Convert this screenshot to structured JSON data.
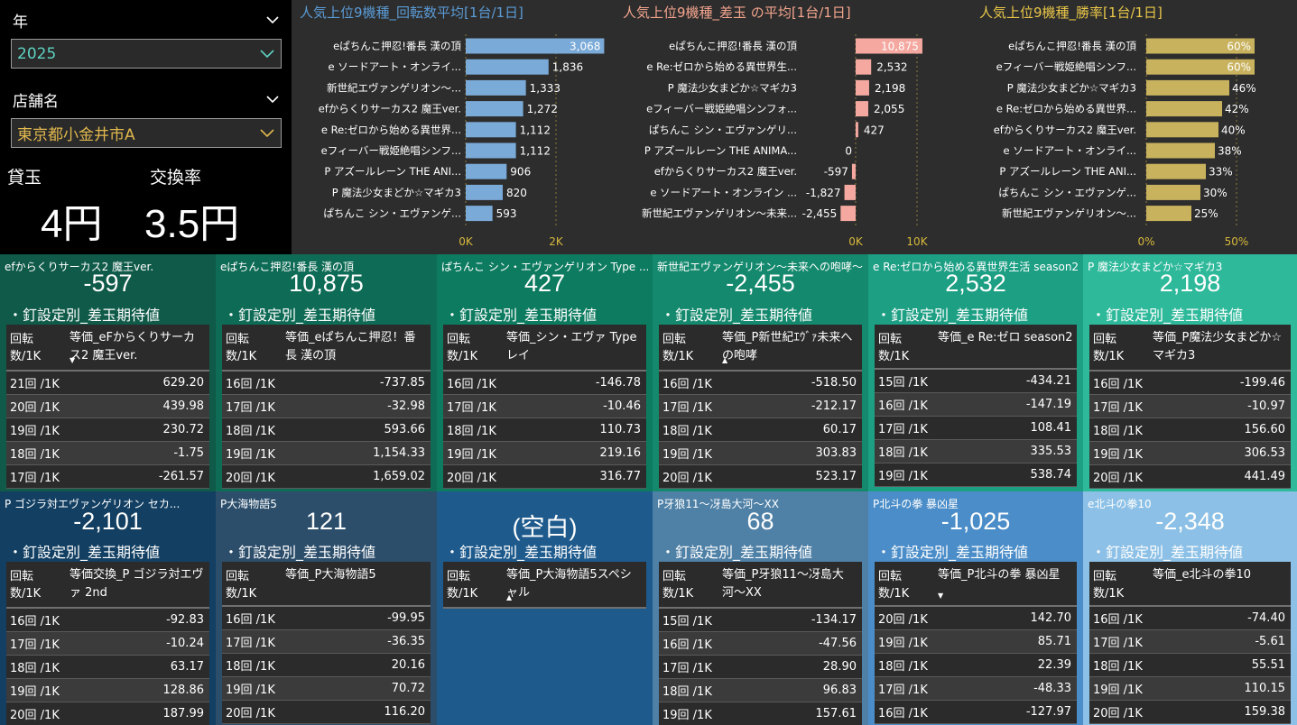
{
  "filters": {
    "year_label": "年",
    "year_value": "2025",
    "store_label": "店舗名",
    "store_value": "東京都小金井市A",
    "ball_label": "貸玉",
    "ball_value": "4円",
    "rate_label": "交換率",
    "rate_value": "3.5円"
  },
  "charts": [
    {
      "title": "人気上位9機種_回転数平均[1台/1日]",
      "title_color": "#5b9bd5",
      "bar_color": "#7aaad8",
      "categories": [
        "eぱちんこ押忍!番長 漢の頂",
        "e ソードアート・オンライ...",
        "新世紀エヴァンゲリオン〜...",
        "efからくりサーカス2 魔王ver.",
        "e Re:ゼロから始める異世界...",
        "eフィーバー戦姫絶唱シンフ...",
        "P アズールレーン THE ANI...",
        "P 魔法少女まどか☆マギカ3",
        "ぱちんこ シン・エヴァンゲ..."
      ],
      "values": [
        3068,
        1836,
        1333,
        1272,
        1112,
        1112,
        906,
        820,
        593
      ],
      "labels": [
        "3,068",
        "1,836",
        "1,333",
        "1,272",
        "1,112",
        "1,112",
        "906",
        "820",
        "593"
      ],
      "ticks": [
        "0K",
        "2K"
      ]
    },
    {
      "title": "人気上位9機種_差玉 の平均[1台/1日]",
      "title_color": "#f4a58e",
      "bar_color": "#f4a8a0",
      "categories": [
        "eぱちんこ押忍!番長 漢の頂",
        "e Re:ゼロから始める異世界生...",
        "P 魔法少女まどか☆マギカ3",
        "eフィーバー戦姫絶唱シンフォ...",
        "ぱちんこ シン・エヴァンゲリ...",
        "P アズールレーン THE ANIMA...",
        "efからくりサーカス2 魔王ver.",
        "e ソードアート・オンライン ...",
        "新世紀エヴァンゲリオン〜未来..."
      ],
      "values": [
        10875,
        2532,
        2198,
        2055,
        427,
        0,
        -597,
        -1827,
        -2455
      ],
      "labels": [
        "10,875",
        "2,532",
        "2,198",
        "2,055",
        "427",
        "0",
        "-597",
        "-1,827",
        "-2,455"
      ],
      "ticks": [
        "0K",
        "10K"
      ]
    },
    {
      "title": "人気上位9機種_勝率[1台/1日]",
      "title_color": "#e8c64a",
      "bar_color": "#c8b25e",
      "categories": [
        "eぱちんこ押忍!番長 漢の頂",
        "eフィーバー戦姫絶唱シンフ...",
        "P 魔法少女まどか☆マギカ3",
        "e Re:ゼロから始める異世界...",
        "efからくりサーカス2 魔王ver.",
        "e ソードアート・オンライ...",
        "P アズールレーン THE ANI...",
        "ぱちんこ シン・エヴァンゲ...",
        "新世紀エヴァンゲリオン〜..."
      ],
      "values": [
        60,
        60,
        46,
        42,
        40,
        38,
        33,
        30,
        25
      ],
      "labels": [
        "60%",
        "60%",
        "46%",
        "42%",
        "40%",
        "38%",
        "33%",
        "30%",
        "25%"
      ],
      "ticks": [
        "0%",
        "50%"
      ]
    }
  ],
  "cards": [
    {
      "name": "efからくりサーカス2 魔王ver.",
      "value": "-597",
      "subtitle": "・釘設定別_差玉期待値",
      "col1": "回転数/1K",
      "col2": "等価_eFからくりサーカス2 魔王ver.",
      "sort": "▼",
      "bg": "#0f5a49",
      "rows": [
        [
          "21回 /1K",
          "629.20"
        ],
        [
          "20回 /1K",
          "439.98"
        ],
        [
          "19回 /1K",
          "230.72"
        ],
        [
          "18回 /1K",
          "-1.75"
        ],
        [
          "17回 /1K",
          "-261.57"
        ]
      ]
    },
    {
      "name": "eぱちんこ押忍!番長 漢の頂",
      "value": "10,875",
      "subtitle": "・釘設定別_差玉期待値",
      "col1": "回転数/1K",
      "col2": "等価_eぱちんこ押忍！番長 漢の頂",
      "sort": "",
      "bg": "#0e6b55",
      "rows": [
        [
          "16回 /1K",
          "-737.85"
        ],
        [
          "17回 /1K",
          "-32.98"
        ],
        [
          "18回 /1K",
          "593.66"
        ],
        [
          "19回 /1K",
          "1,154.33"
        ],
        [
          "20回 /1K",
          "1,659.02"
        ]
      ]
    },
    {
      "name": "ぱちんこ シン・エヴァンゲリオン Type ...",
      "value": "427",
      "subtitle": "・釘設定別_差玉期待値",
      "col1": "回転数/1K",
      "col2": "等価_シン・エヴァ Type レイ",
      "sort": "",
      "bg": "#0d7b60",
      "rows": [
        [
          "16回 /1K",
          "-146.78"
        ],
        [
          "17回 /1K",
          "-10.46"
        ],
        [
          "18回 /1K",
          "110.73"
        ],
        [
          "19回 /1K",
          "219.16"
        ],
        [
          "20回 /1K",
          "316.77"
        ]
      ]
    },
    {
      "name": "新世紀エヴァンゲリオン〜未来への咆哮〜",
      "value": "-2,455",
      "subtitle": "・釘設定別_差玉期待値",
      "col1": "回転数/1K",
      "col2": "等価_P新世紀ｴｳﾞｧ未来への咆哮",
      "sort": "▲",
      "bg": "#14896d",
      "rows": [
        [
          "16回 /1K",
          "-518.50"
        ],
        [
          "17回 /1K",
          "-212.17"
        ],
        [
          "18回 /1K",
          "60.17"
        ],
        [
          "19回 /1K",
          "303.83"
        ],
        [
          "20回 /1K",
          "523.17"
        ]
      ]
    },
    {
      "name": "e Re:ゼロから始める異世界生活 season2",
      "value": "2,532",
      "subtitle": "・釘設定別_差玉期待値",
      "col1": "回転数/1K",
      "col2": "等価_e Re:ゼロ season2",
      "sort": "",
      "bg": "#1d9f84",
      "rows": [
        [
          "15回 /1K",
          "-434.21"
        ],
        [
          "16回 /1K",
          "-147.19"
        ],
        [
          "17回 /1K",
          "108.41"
        ],
        [
          "18回 /1K",
          "335.53"
        ],
        [
          "19回 /1K",
          "538.74"
        ]
      ]
    },
    {
      "name": "P 魔法少女まどか☆マギカ3",
      "value": "2,198",
      "subtitle": "・釘設定別_差玉期待値",
      "col1": "回転数/1K",
      "col2": "等価_P魔法少女まどか☆マギカ3",
      "sort": "",
      "bg": "#2fb99b",
      "rows": [
        [
          "16回 /1K",
          "-199.46"
        ],
        [
          "17回 /1K",
          "-10.97"
        ],
        [
          "18回 /1K",
          "156.60"
        ],
        [
          "19回 /1K",
          "306.53"
        ],
        [
          "20回 /1K",
          "441.49"
        ]
      ]
    },
    {
      "name": "P ゴジラ対エヴァンゲリオン セカ...",
      "value": "-2,101",
      "subtitle": "・釘設定別_差玉期待値",
      "col1": "回転数/1K",
      "col2": "等価交換_P ゴジラ対エヴァ 2nd",
      "sort": "",
      "bg": "#123f62",
      "rows": [
        [
          "16回 /1K",
          "-92.83"
        ],
        [
          "17回 /1K",
          "-10.24"
        ],
        [
          "18回 /1K",
          "63.17"
        ],
        [
          "19回 /1K",
          "128.86"
        ],
        [
          "20回 /1K",
          "187.99"
        ]
      ]
    },
    {
      "name": "P大海物語5",
      "value": "121",
      "subtitle": "・釘設定別_差玉期待値",
      "col1": "回転数/1K",
      "col2": "等価_P大海物語5",
      "sort": "",
      "bg": "#2c4e6b",
      "rows": [
        [
          "16回 /1K",
          "-99.95"
        ],
        [
          "17回 /1K",
          "-36.35"
        ],
        [
          "18回 /1K",
          "20.16"
        ],
        [
          "19回 /1K",
          "70.72"
        ],
        [
          "20回 /1K",
          "116.20"
        ]
      ]
    },
    {
      "name": "",
      "value": "(空白)",
      "subtitle": "・釘設定別_差玉期待値",
      "col1": "回転数/1K",
      "col2": "等価_P大海物語5スペシャル",
      "sort": "▲",
      "bg": "#1e5a8c",
      "rows": []
    },
    {
      "name": "P牙狼11〜冴島大河〜XX",
      "value": "68",
      "subtitle": "・釘設定別_差玉期待値",
      "col1": "回転数/1K",
      "col2": "等価_P牙狼11〜冴島大河〜XX",
      "sort": "",
      "bg": "#4f80a6",
      "rows": [
        [
          "15回 /1K",
          "-134.17"
        ],
        [
          "16回 /1K",
          "-47.56"
        ],
        [
          "17回 /1K",
          "28.90"
        ],
        [
          "18回 /1K",
          "96.83"
        ],
        [
          "19回 /1K",
          "157.61"
        ]
      ]
    },
    {
      "name": "P北斗の拳 暴凶星",
      "value": "-1,025",
      "subtitle": "・釘設定別_差玉期待値",
      "col1": "回転数/1K",
      "col2": "等価_P北斗の拳 暴凶星",
      "sort": "▼",
      "bg": "#4b8dc8",
      "rows": [
        [
          "20回 /1K",
          "142.70"
        ],
        [
          "19回 /1K",
          "85.71"
        ],
        [
          "18回 /1K",
          "22.39"
        ],
        [
          "17回 /1K",
          "-48.33"
        ],
        [
          "16回 /1K",
          "-127.97"
        ]
      ]
    },
    {
      "name": "e北斗の拳10",
      "value": "-2,348",
      "subtitle": "・釘設定別_差玉期待値",
      "col1": "回転数/1K",
      "col2": "等価_e北斗の拳10",
      "sort": "",
      "bg": "#8cc0e6",
      "rows": [
        [
          "16回 /1K",
          "-74.40"
        ],
        [
          "17回 /1K",
          "-5.61"
        ],
        [
          "18回 /1K",
          "55.51"
        ],
        [
          "19回 /1K",
          "110.15"
        ],
        [
          "20回 /1K",
          "159.38"
        ]
      ]
    }
  ]
}
